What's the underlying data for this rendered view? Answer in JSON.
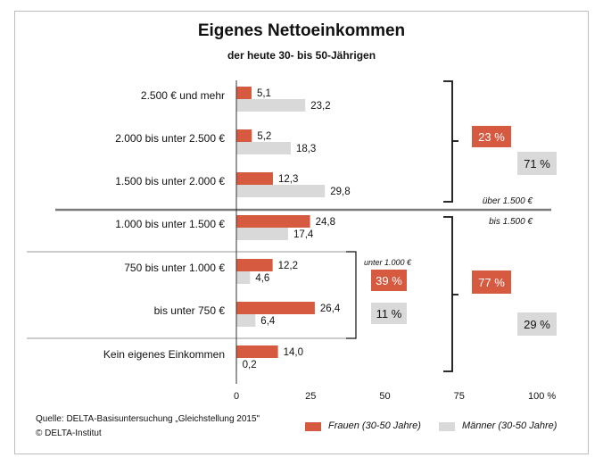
{
  "chart_data": {
    "type": "bar",
    "orientation": "horizontal",
    "title": "Eigenes Nettoeinkommen",
    "subtitle": "der heute 30- bis 50-Jährigen",
    "categories": [
      "2.500 € und mehr",
      "2.000 bis unter 2.500 €",
      "1.500 bis unter 2.000 €",
      "1.000 bis unter 1.500 €",
      "750 bis unter 1.000 €",
      "bis unter 750 €",
      "Kein eigenes Einkommen"
    ],
    "series": [
      {
        "name": "Frauen (30-50 Jahre)",
        "color": "#d55a40",
        "values": [
          5.1,
          5.2,
          12.3,
          24.8,
          12.2,
          26.4,
          14.0
        ],
        "labels": [
          "5,1",
          "5,2",
          "12,3",
          "24,8",
          "12,2",
          "26,4",
          "14,0"
        ]
      },
      {
        "name": "Männer (30-50 Jahre)",
        "color": "#d9d9d9",
        "values": [
          23.2,
          18.3,
          29.8,
          17.4,
          4.6,
          6.4,
          0.2
        ],
        "labels": [
          "23,2",
          "18,3",
          "29,8",
          "17,4",
          "4,6",
          "6,4",
          "0,2"
        ]
      }
    ],
    "xlim": [
      0,
      100
    ],
    "xticks": [
      "0",
      "25",
      "50",
      "75",
      "100 %"
    ],
    "legend_position": "bottom-right",
    "annotations": {
      "ueber_label": "über 1.500 €",
      "bis_label": "bis 1.500 €",
      "unter_label": "unter 1.000 €",
      "frauen_ueber": "23 %",
      "maenner_ueber": "71 %",
      "frauen_bis": "77 %",
      "maenner_bis": "29 %",
      "frauen_unter": "39 %",
      "maenner_unter": "11 %"
    }
  },
  "source_line": "Quelle: DELTA-Basisuntersuchung „Gleichstellung 2015\"",
  "copyright_line": "© DELTA-Institut",
  "legend": {
    "frauen": "Frauen (30-50 Jahre)",
    "maenner": "Männer (30-50 Jahre)"
  }
}
